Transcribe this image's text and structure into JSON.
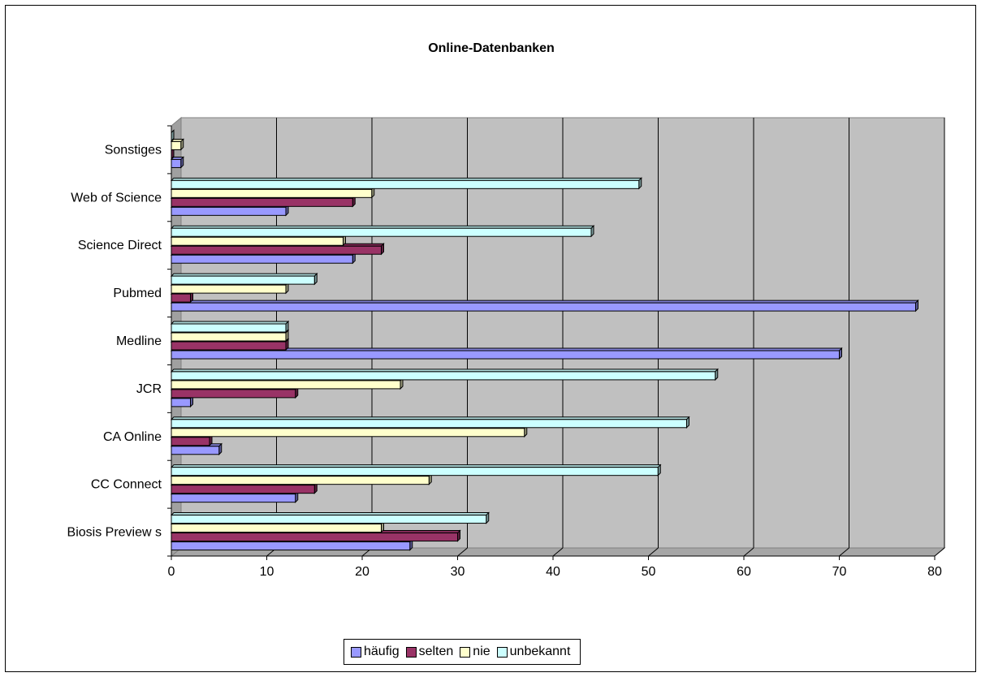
{
  "chart_data": {
    "type": "bar",
    "orientation": "horizontal",
    "title": "Online-Datenbanken",
    "categories": [
      "Biosis Preview s",
      "CC Connect",
      "CA Online",
      "JCR",
      "Medline",
      "Pubmed",
      "Science Direct",
      "Web of Science",
      "Sonstiges"
    ],
    "series": [
      {
        "name": "häufig",
        "color": "#9999FF",
        "values": [
          25,
          13,
          5,
          2,
          70,
          78,
          19,
          12,
          1
        ]
      },
      {
        "name": "selten",
        "color": "#993366",
        "values": [
          30,
          15,
          4,
          13,
          12,
          2,
          22,
          19,
          0
        ]
      },
      {
        "name": "nie",
        "color": "#FFFFCC",
        "values": [
          22,
          27,
          37,
          24,
          12,
          12,
          18,
          21,
          1
        ]
      },
      {
        "name": "unbekannt",
        "color": "#CCFFFF",
        "values": [
          33,
          51,
          54,
          57,
          12,
          15,
          44,
          49,
          0
        ]
      }
    ],
    "xlim": [
      0,
      80
    ],
    "xticks": [
      0,
      10,
      20,
      30,
      40,
      50,
      60,
      70,
      80
    ],
    "grid": true,
    "plot_background": "#C0C0C0",
    "legend_position": "bottom"
  }
}
